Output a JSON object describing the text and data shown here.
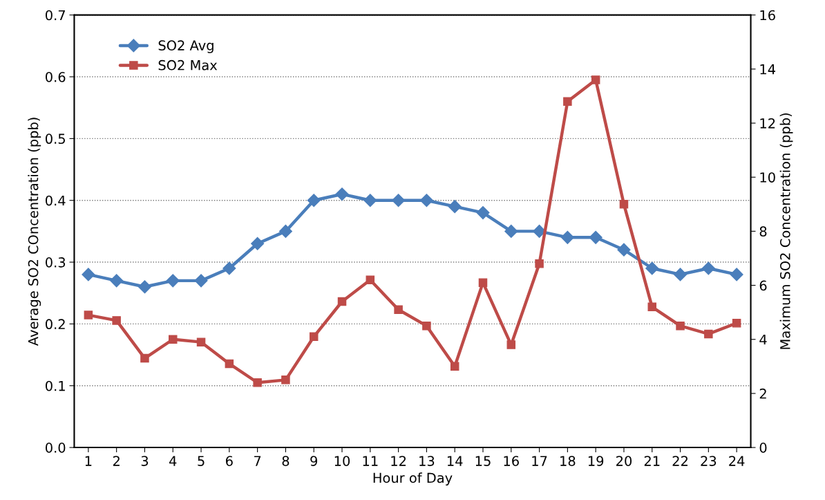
{
  "chart_data": {
    "type": "line",
    "xlabel": "Hour of Day",
    "ylabel": "Average SO2 COncentration (ppb)",
    "y2label": "Maximum SO2 Concentration (ppb)",
    "categories": [
      "1",
      "2",
      "3",
      "4",
      "5",
      "6",
      "7",
      "8",
      "9",
      "10",
      "11",
      "12",
      "13",
      "14",
      "15",
      "16",
      "17",
      "18",
      "19",
      "20",
      "21",
      "22",
      "23",
      "24"
    ],
    "series": [
      {
        "name": "SO2 Avg",
        "color": "#4a7ebb",
        "marker": "diamond",
        "values": [
          0.28,
          0.27,
          0.26,
          0.27,
          0.27,
          0.29,
          0.33,
          0.35,
          0.4,
          0.41,
          0.4,
          0.4,
          0.4,
          0.39,
          0.38,
          0.35,
          0.35,
          0.34,
          0.34,
          0.32,
          0.29,
          0.28,
          0.29,
          0.28
        ]
      },
      {
        "name": "SO2 Max",
        "color": "#be4b48",
        "marker": "square",
        "axis": "y2",
        "values": [
          4.9,
          4.7,
          3.3,
          4.0,
          3.9,
          3.1,
          2.4,
          2.5,
          4.1,
          5.4,
          6.2,
          5.1,
          4.5,
          3.0,
          6.1,
          3.8,
          6.8,
          12.8,
          13.6,
          9.0,
          5.2,
          4.5,
          4.2,
          4.6
        ]
      }
    ],
    "ylim": [
      0,
      0.7
    ],
    "yticks": [
      {
        "value": 0,
        "label": "0.0"
      },
      0.1,
      0.2,
      0.3,
      0.4,
      0.5,
      0.6,
      0.7
    ],
    "y2lim": [
      0,
      16
    ],
    "y2ticks": [
      0,
      2,
      4,
      6,
      8,
      10,
      12,
      14,
      16
    ],
    "grid": "y",
    "legend": "top left",
    "line_style": "solid"
  }
}
